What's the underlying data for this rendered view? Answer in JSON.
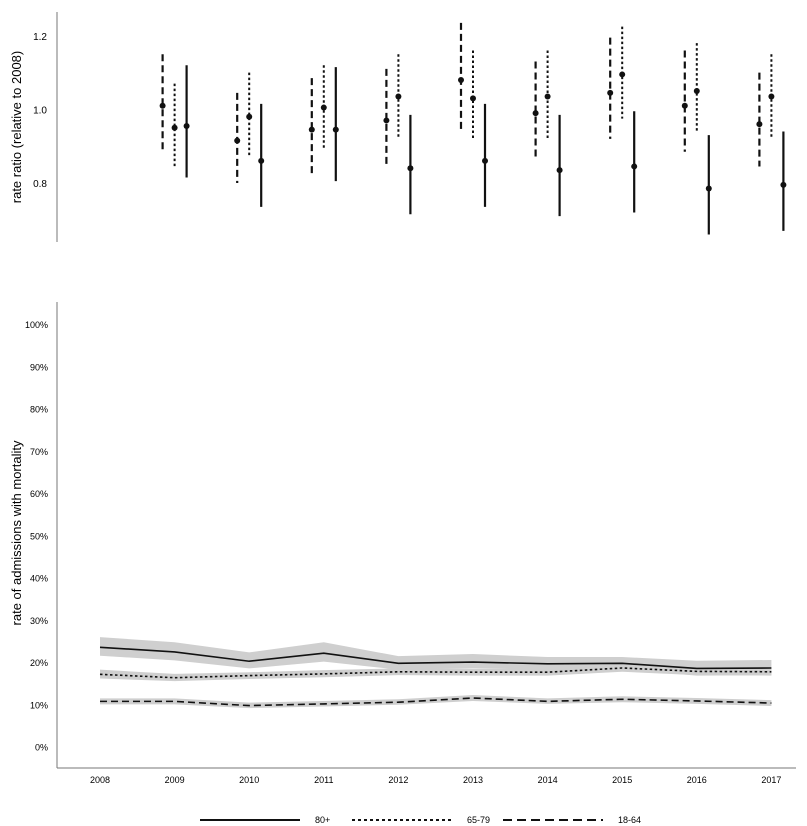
{
  "chart_data": [
    {
      "type": "errorbar",
      "ylabel": "rate ratio (relative to 2008)",
      "xlabel": "",
      "ylim": [
        0.62,
        1.26
      ],
      "yticks": [
        0.8,
        1.0,
        1.2
      ],
      "ytick_labels": [
        "0.8",
        "1.0",
        "1.2"
      ],
      "grid": false,
      "categories": [
        "2009",
        "2010",
        "2011",
        "2012",
        "2013",
        "2014",
        "2015",
        "2016",
        "2017"
      ],
      "series": [
        {
          "linestyle": "dashed",
          "values": [
            1.01,
            0.915,
            0.945,
            0.97,
            1.08,
            0.99,
            1.045,
            1.01,
            0.96
          ],
          "lower": [
            0.885,
            0.8,
            0.825,
            0.85,
            0.945,
            0.865,
            0.92,
            0.885,
            0.845
          ],
          "upper": [
            1.15,
            1.045,
            1.085,
            1.11,
            1.235,
            1.13,
            1.195,
            1.16,
            1.1
          ]
        },
        {
          "linestyle": "dotted",
          "values": [
            0.95,
            0.98,
            1.005,
            1.035,
            1.03,
            1.035,
            1.095,
            1.05,
            1.035
          ],
          "lower": [
            0.845,
            0.875,
            0.89,
            0.925,
            0.92,
            0.92,
            0.975,
            0.94,
            0.925
          ],
          "upper": [
            1.07,
            1.1,
            1.12,
            1.15,
            1.16,
            1.16,
            1.225,
            1.18,
            1.15
          ]
        },
        {
          "linestyle": "solid",
          "values": [
            0.955,
            0.86,
            0.945,
            0.84,
            0.86,
            0.835,
            0.845,
            0.785,
            0.795
          ],
          "lower": [
            0.815,
            0.735,
            0.805,
            0.715,
            0.735,
            0.71,
            0.72,
            0.66,
            0.67
          ],
          "upper": [
            1.12,
            1.015,
            1.115,
            0.985,
            1.015,
            0.985,
            0.995,
            0.93,
            0.94
          ]
        }
      ]
    },
    {
      "type": "line",
      "ylabel": "rate of admissions with mortality",
      "xlabel": "",
      "ylim": [
        0,
        105
      ],
      "yticks": [
        0,
        10,
        20,
        30,
        40,
        50,
        60,
        70,
        80,
        90,
        100
      ],
      "ytick_labels": [
        "0%",
        "10%",
        "20%",
        "30%",
        "40%",
        "50%",
        "60%",
        "70%",
        "80%",
        "90%",
        "100%"
      ],
      "x": [
        "2008",
        "2009",
        "2010",
        "2011",
        "2012",
        "2013",
        "2014",
        "2015",
        "2016",
        "2017"
      ],
      "grid": false,
      "confidence_band": true,
      "legend_position": "bottom",
      "series": [
        {
          "name": "80+",
          "linestyle": "solid",
          "values": [
            23.6,
            22.5,
            20.3,
            22.2,
            19.8,
            20.1,
            19.7,
            19.8,
            18.6,
            18.7
          ],
          "lower": [
            21.6,
            20.5,
            18.6,
            20.2,
            18.3,
            18.6,
            18.3,
            18.4,
            16.9,
            17.0
          ],
          "upper": [
            26.0,
            24.8,
            22.4,
            24.8,
            21.5,
            22.0,
            21.3,
            21.3,
            20.4,
            20.6
          ]
        },
        {
          "name": "65-79",
          "linestyle": "dotted",
          "values": [
            17.2,
            16.4,
            16.9,
            17.3,
            17.8,
            17.7,
            17.7,
            18.7,
            17.9,
            17.8
          ],
          "lower": [
            16.2,
            15.6,
            16.1,
            16.5,
            17.0,
            16.9,
            16.9,
            17.8,
            17.0,
            16.9
          ],
          "upper": [
            18.3,
            17.3,
            17.7,
            18.2,
            18.6,
            18.5,
            18.5,
            19.7,
            18.8,
            18.7
          ]
        },
        {
          "name": "18-64",
          "linestyle": "dashed",
          "values": [
            10.8,
            10.8,
            9.8,
            10.2,
            10.6,
            11.6,
            10.8,
            11.3,
            10.9,
            10.4
          ],
          "lower": [
            10.1,
            10.1,
            9.2,
            9.6,
            10.0,
            10.9,
            10.2,
            10.6,
            10.2,
            9.7
          ],
          "upper": [
            11.5,
            11.5,
            10.5,
            10.9,
            11.3,
            12.3,
            11.5,
            12.0,
            11.6,
            11.1
          ]
        }
      ]
    }
  ],
  "colors": {
    "line": "#111111",
    "band": "#cfcfcf",
    "axis": "#777777"
  }
}
